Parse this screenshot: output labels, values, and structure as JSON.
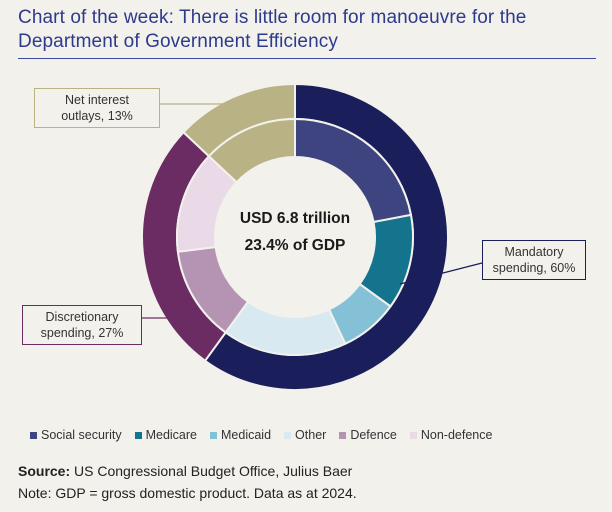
{
  "title": "Chart of the week: There is little room for manoeuvre for the Department of Government Efficiency",
  "center": {
    "line1": "USD 6.8 trillion",
    "line2": "23.4% of GDP"
  },
  "labels": {
    "net_interest": "Net interest outlays, 13%",
    "mandatory": "Mandatory spending, 60%",
    "discretionary": "Discretionary spending, 27%"
  },
  "colors": {
    "mandatory": "#1a1f5c",
    "discretionary": "#6b2c63",
    "net_interest": "#b8b284",
    "social_security": "#3d4480",
    "medicare": "#14748e",
    "medicaid": "#85c1d6",
    "other": "#d8e9f2",
    "defence": "#b594b3",
    "non_defence": "#ead9e6",
    "box_mandatory": "#1a1f5c",
    "box_discretionary": "#6b2c63",
    "box_net_interest": "#b8b284"
  },
  "chart_data": {
    "type": "pie",
    "title": "Chart of the week: There is little room for manoeuvre for the Department of Government Efficiency",
    "total_label": "USD 6.8 trillion",
    "total_share_label": "23.4% of GDP",
    "outer_ring": [
      {
        "name": "Mandatory spending",
        "value": 60
      },
      {
        "name": "Discretionary spending",
        "value": 27
      },
      {
        "name": "Net interest outlays",
        "value": 13
      }
    ],
    "inner_ring": [
      {
        "name": "Social security",
        "value": 22
      },
      {
        "name": "Medicare",
        "value": 13
      },
      {
        "name": "Medicaid",
        "value": 8
      },
      {
        "name": "Other",
        "value": 17
      },
      {
        "name": "Defence",
        "value": 13
      },
      {
        "name": "Non-defence",
        "value": 14
      },
      {
        "name": "Net interest",
        "value": 13
      }
    ],
    "legend": [
      "Social security",
      "Medicare",
      "Medicaid",
      "Other",
      "Defence",
      "Non-defence"
    ]
  },
  "legend": [
    {
      "label": "Social security",
      "color": "#3d4480"
    },
    {
      "label": "Medicare",
      "color": "#14748e"
    },
    {
      "label": "Medicaid",
      "color": "#85c1d6"
    },
    {
      "label": "Other",
      "color": "#d8e9f2"
    },
    {
      "label": "Defence",
      "color": "#b594b3"
    },
    {
      "label": "Non-defence",
      "color": "#ead9e6"
    }
  ],
  "source": {
    "label": "Source:",
    "text": "US Congressional Budget Office, Julius Baer",
    "note": "Note: GDP = gross domestic product. Data as at 2024."
  }
}
